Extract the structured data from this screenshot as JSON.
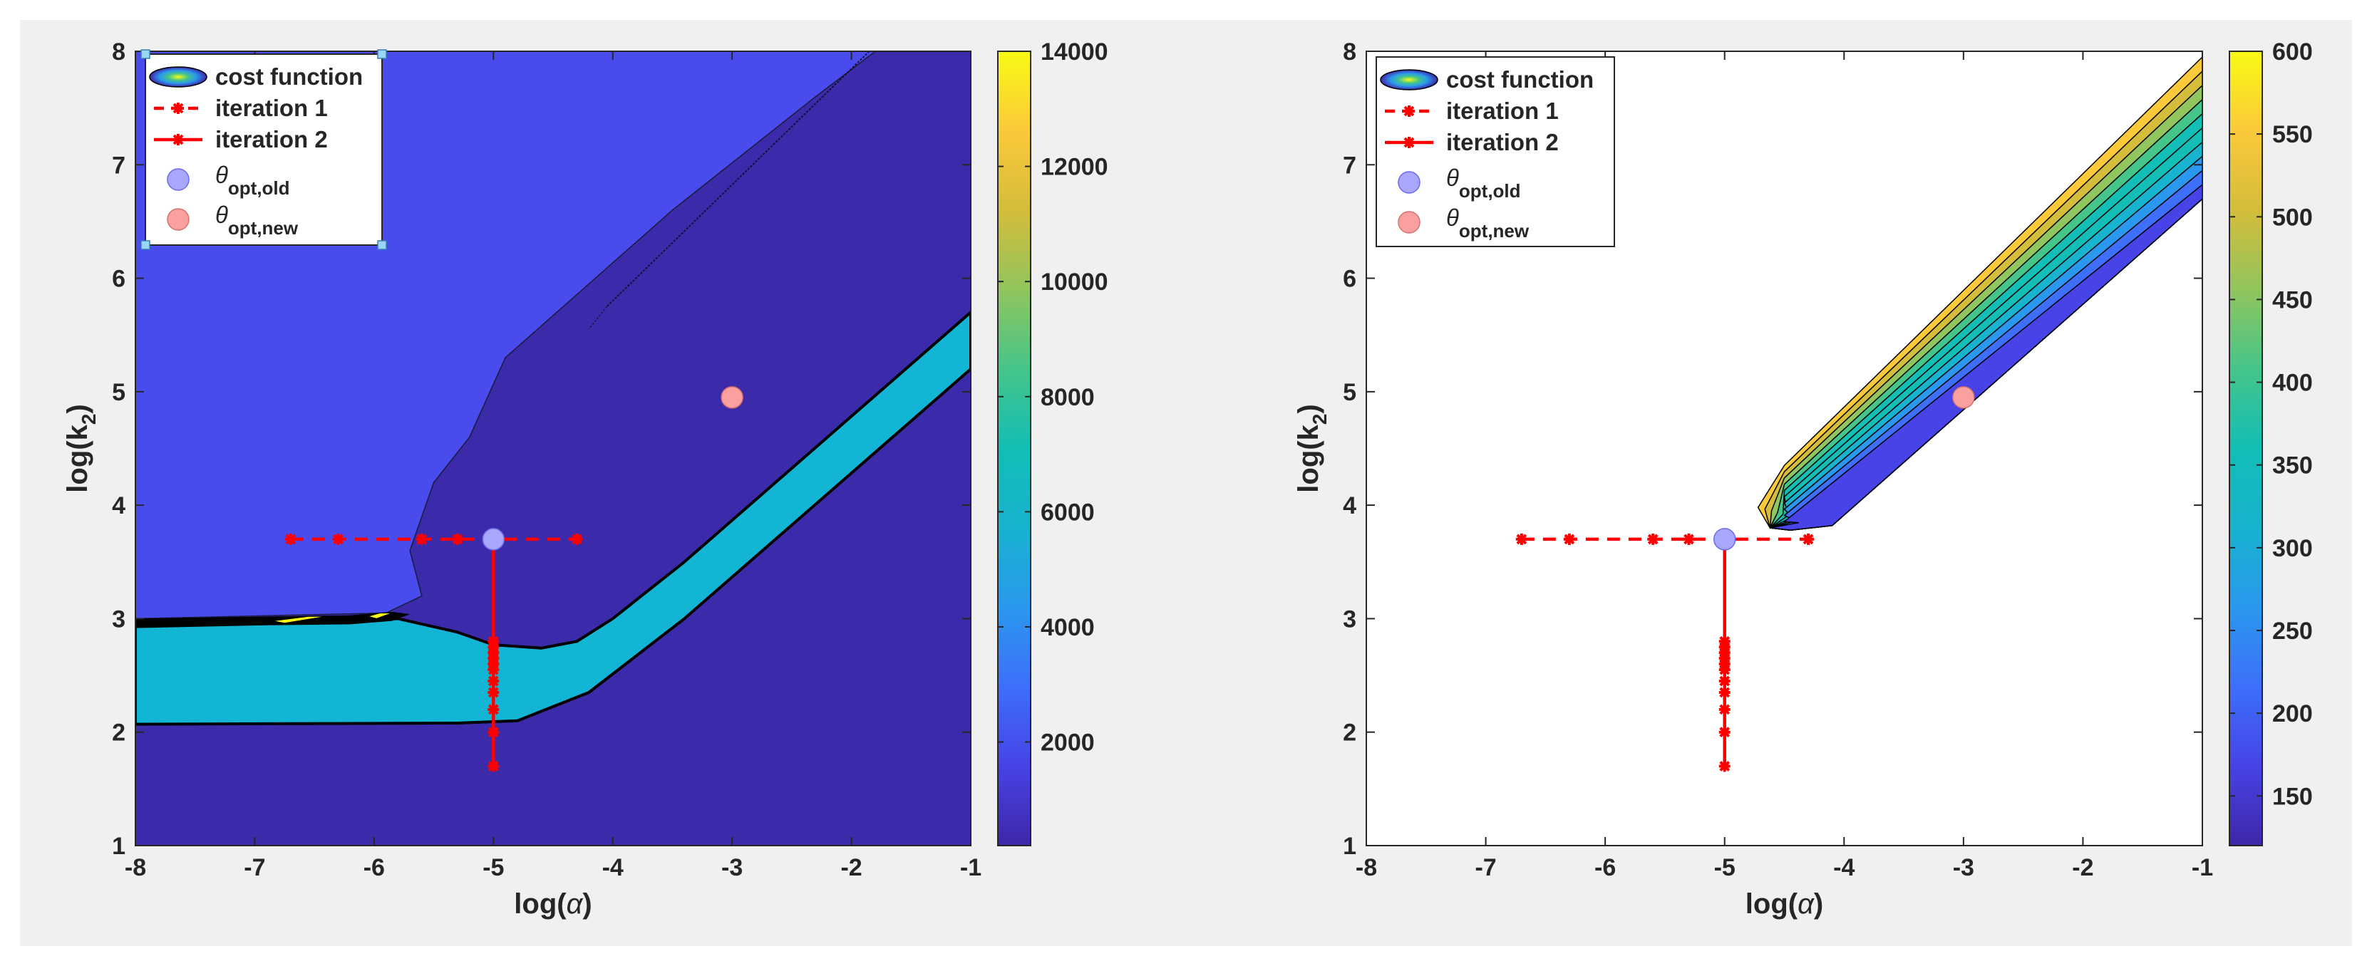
{
  "figure": {
    "background": "#f0f0f0"
  },
  "chart_data": [
    {
      "type": "contour",
      "panel": "left",
      "title": "",
      "xlabel": "log(",
      "xlabel_symbol": "α",
      "xlabel_close": ")",
      "ylabel": "log(k",
      "ylabel_sub": "2",
      "ylabel_close": ")",
      "xlim": [
        -8,
        -1
      ],
      "ylim": [
        1,
        8
      ],
      "xticks": [
        "-8",
        "-7",
        "-6",
        "-5",
        "-4",
        "-3",
        "-2",
        "-1"
      ],
      "yticks": [
        "1",
        "2",
        "3",
        "4",
        "5",
        "6",
        "7",
        "8"
      ],
      "colorbar": {
        "ticks": [
          "2000",
          "4000",
          "6000",
          "8000",
          "10000",
          "12000",
          "14000"
        ],
        "min": 200,
        "max": 14000
      },
      "regions": {
        "upper_left_plateau": [
          [
            -8,
            8
          ],
          [
            -1.8,
            8
          ],
          [
            -2.3,
            7.6
          ],
          [
            -3.5,
            6.6
          ],
          [
            -4.9,
            5.3
          ],
          [
            -5.2,
            4.6
          ],
          [
            -5.5,
            4.2
          ],
          [
            -5.6,
            3.9
          ],
          [
            -5.7,
            3.6
          ],
          [
            -5.6,
            3.2
          ],
          [
            -5.9,
            3.05
          ],
          [
            -8,
            3.0
          ]
        ],
        "band": [
          [
            -8,
            2.93
          ],
          [
            -6.2,
            2.97
          ],
          [
            -5.8,
            3.0
          ],
          [
            -5.3,
            2.88
          ],
          [
            -5.0,
            2.77
          ],
          [
            -4.6,
            2.74
          ],
          [
            -4.3,
            2.8
          ],
          [
            -4.0,
            3.0
          ],
          [
            -3.4,
            3.5
          ],
          [
            -1,
            5.7
          ],
          [
            -1,
            5.2
          ],
          [
            -3.4,
            3.0
          ],
          [
            -4.2,
            2.35
          ],
          [
            -4.8,
            2.1
          ],
          [
            -5.3,
            2.08
          ],
          [
            -8,
            2.07
          ]
        ]
      },
      "iteration_1": {
        "x": [
          -6.7,
          -6.3,
          -5.6,
          -5.3,
          -5.0,
          -4.3
        ],
        "y": [
          3.7,
          3.7,
          3.7,
          3.7,
          3.7,
          3.7
        ]
      },
      "iteration_2": {
        "x": [
          -5,
          -5,
          -5,
          -5,
          -5,
          -5,
          -5,
          -5,
          -5,
          -5,
          -5,
          -5
        ],
        "y": [
          1.7,
          2.0,
          2.2,
          2.35,
          2.45,
          2.55,
          2.6,
          2.65,
          2.7,
          2.75,
          2.8,
          3.7
        ]
      },
      "theta_opt_old": {
        "x": -5.0,
        "y": 3.7
      },
      "theta_opt_new": {
        "x": -3.0,
        "y": 4.95
      },
      "legend": [
        {
          "key": "cost",
          "label": "cost function"
        },
        {
          "key": "it1",
          "label": "iteration 1"
        },
        {
          "key": "it2",
          "label": "iteration 2"
        },
        {
          "key": "old",
          "label": "θ",
          "sub": "opt,old"
        },
        {
          "key": "new",
          "label": "θ",
          "sub": "opt,new"
        }
      ],
      "legend_position": "top-left"
    },
    {
      "type": "contour",
      "panel": "right",
      "title": "",
      "xlabel": "log(",
      "xlabel_symbol": "α",
      "xlabel_close": ")",
      "ylabel": "log(k",
      "ylabel_sub": "2",
      "ylabel_close": ")",
      "xlim": [
        -8,
        -1
      ],
      "ylim": [
        1,
        8
      ],
      "xticks": [
        "-8",
        "-7",
        "-6",
        "-5",
        "-4",
        "-3",
        "-2",
        "-1"
      ],
      "yticks": [
        "1",
        "2",
        "3",
        "4",
        "5",
        "6",
        "7",
        "8"
      ],
      "colorbar": {
        "ticks": [
          "150",
          "200",
          "250",
          "300",
          "350",
          "400",
          "450",
          "500",
          "550",
          "600"
        ],
        "min": 120,
        "max": 600
      },
      "contour_band": {
        "start": [
          -4.72,
          3.9
        ],
        "end": [
          -1,
          7.95
        ],
        "bottom_end": [
          -1,
          6.7
        ],
        "levels": 10
      },
      "iteration_1": {
        "x": [
          -6.7,
          -6.3,
          -5.6,
          -5.3,
          -5.0,
          -4.3
        ],
        "y": [
          3.7,
          3.7,
          3.7,
          3.7,
          3.7,
          3.7
        ]
      },
      "iteration_2": {
        "x": [
          -5,
          -5,
          -5,
          -5,
          -5,
          -5,
          -5,
          -5,
          -5,
          -5,
          -5,
          -5
        ],
        "y": [
          1.7,
          2.0,
          2.2,
          2.35,
          2.45,
          2.55,
          2.6,
          2.65,
          2.7,
          2.75,
          2.8,
          3.7
        ]
      },
      "theta_opt_old": {
        "x": -5.0,
        "y": 3.7
      },
      "theta_opt_new": {
        "x": -3.0,
        "y": 4.95
      },
      "legend": [
        {
          "key": "cost",
          "label": "cost function"
        },
        {
          "key": "it1",
          "label": "iteration 1"
        },
        {
          "key": "it2",
          "label": "iteration 2"
        },
        {
          "key": "old",
          "label": "θ",
          "sub": "opt,old"
        },
        {
          "key": "new",
          "label": "θ",
          "sub": "opt,new"
        }
      ],
      "legend_position": "top-left"
    }
  ],
  "colors": {
    "parula": [
      "#3e26a8",
      "#4743e6",
      "#3d6ffa",
      "#2a98ee",
      "#17b3cf",
      "#12beb5",
      "#45c58a",
      "#91c55d",
      "#d4bd3a",
      "#fbc93a",
      "#f9fa14"
    ],
    "plateau": "#4a4bed",
    "base": "#3b2aa9",
    "band": "#12b5d3",
    "iteration": "#ff0000",
    "old": "#a7a7fb",
    "new": "#fba0a0"
  }
}
